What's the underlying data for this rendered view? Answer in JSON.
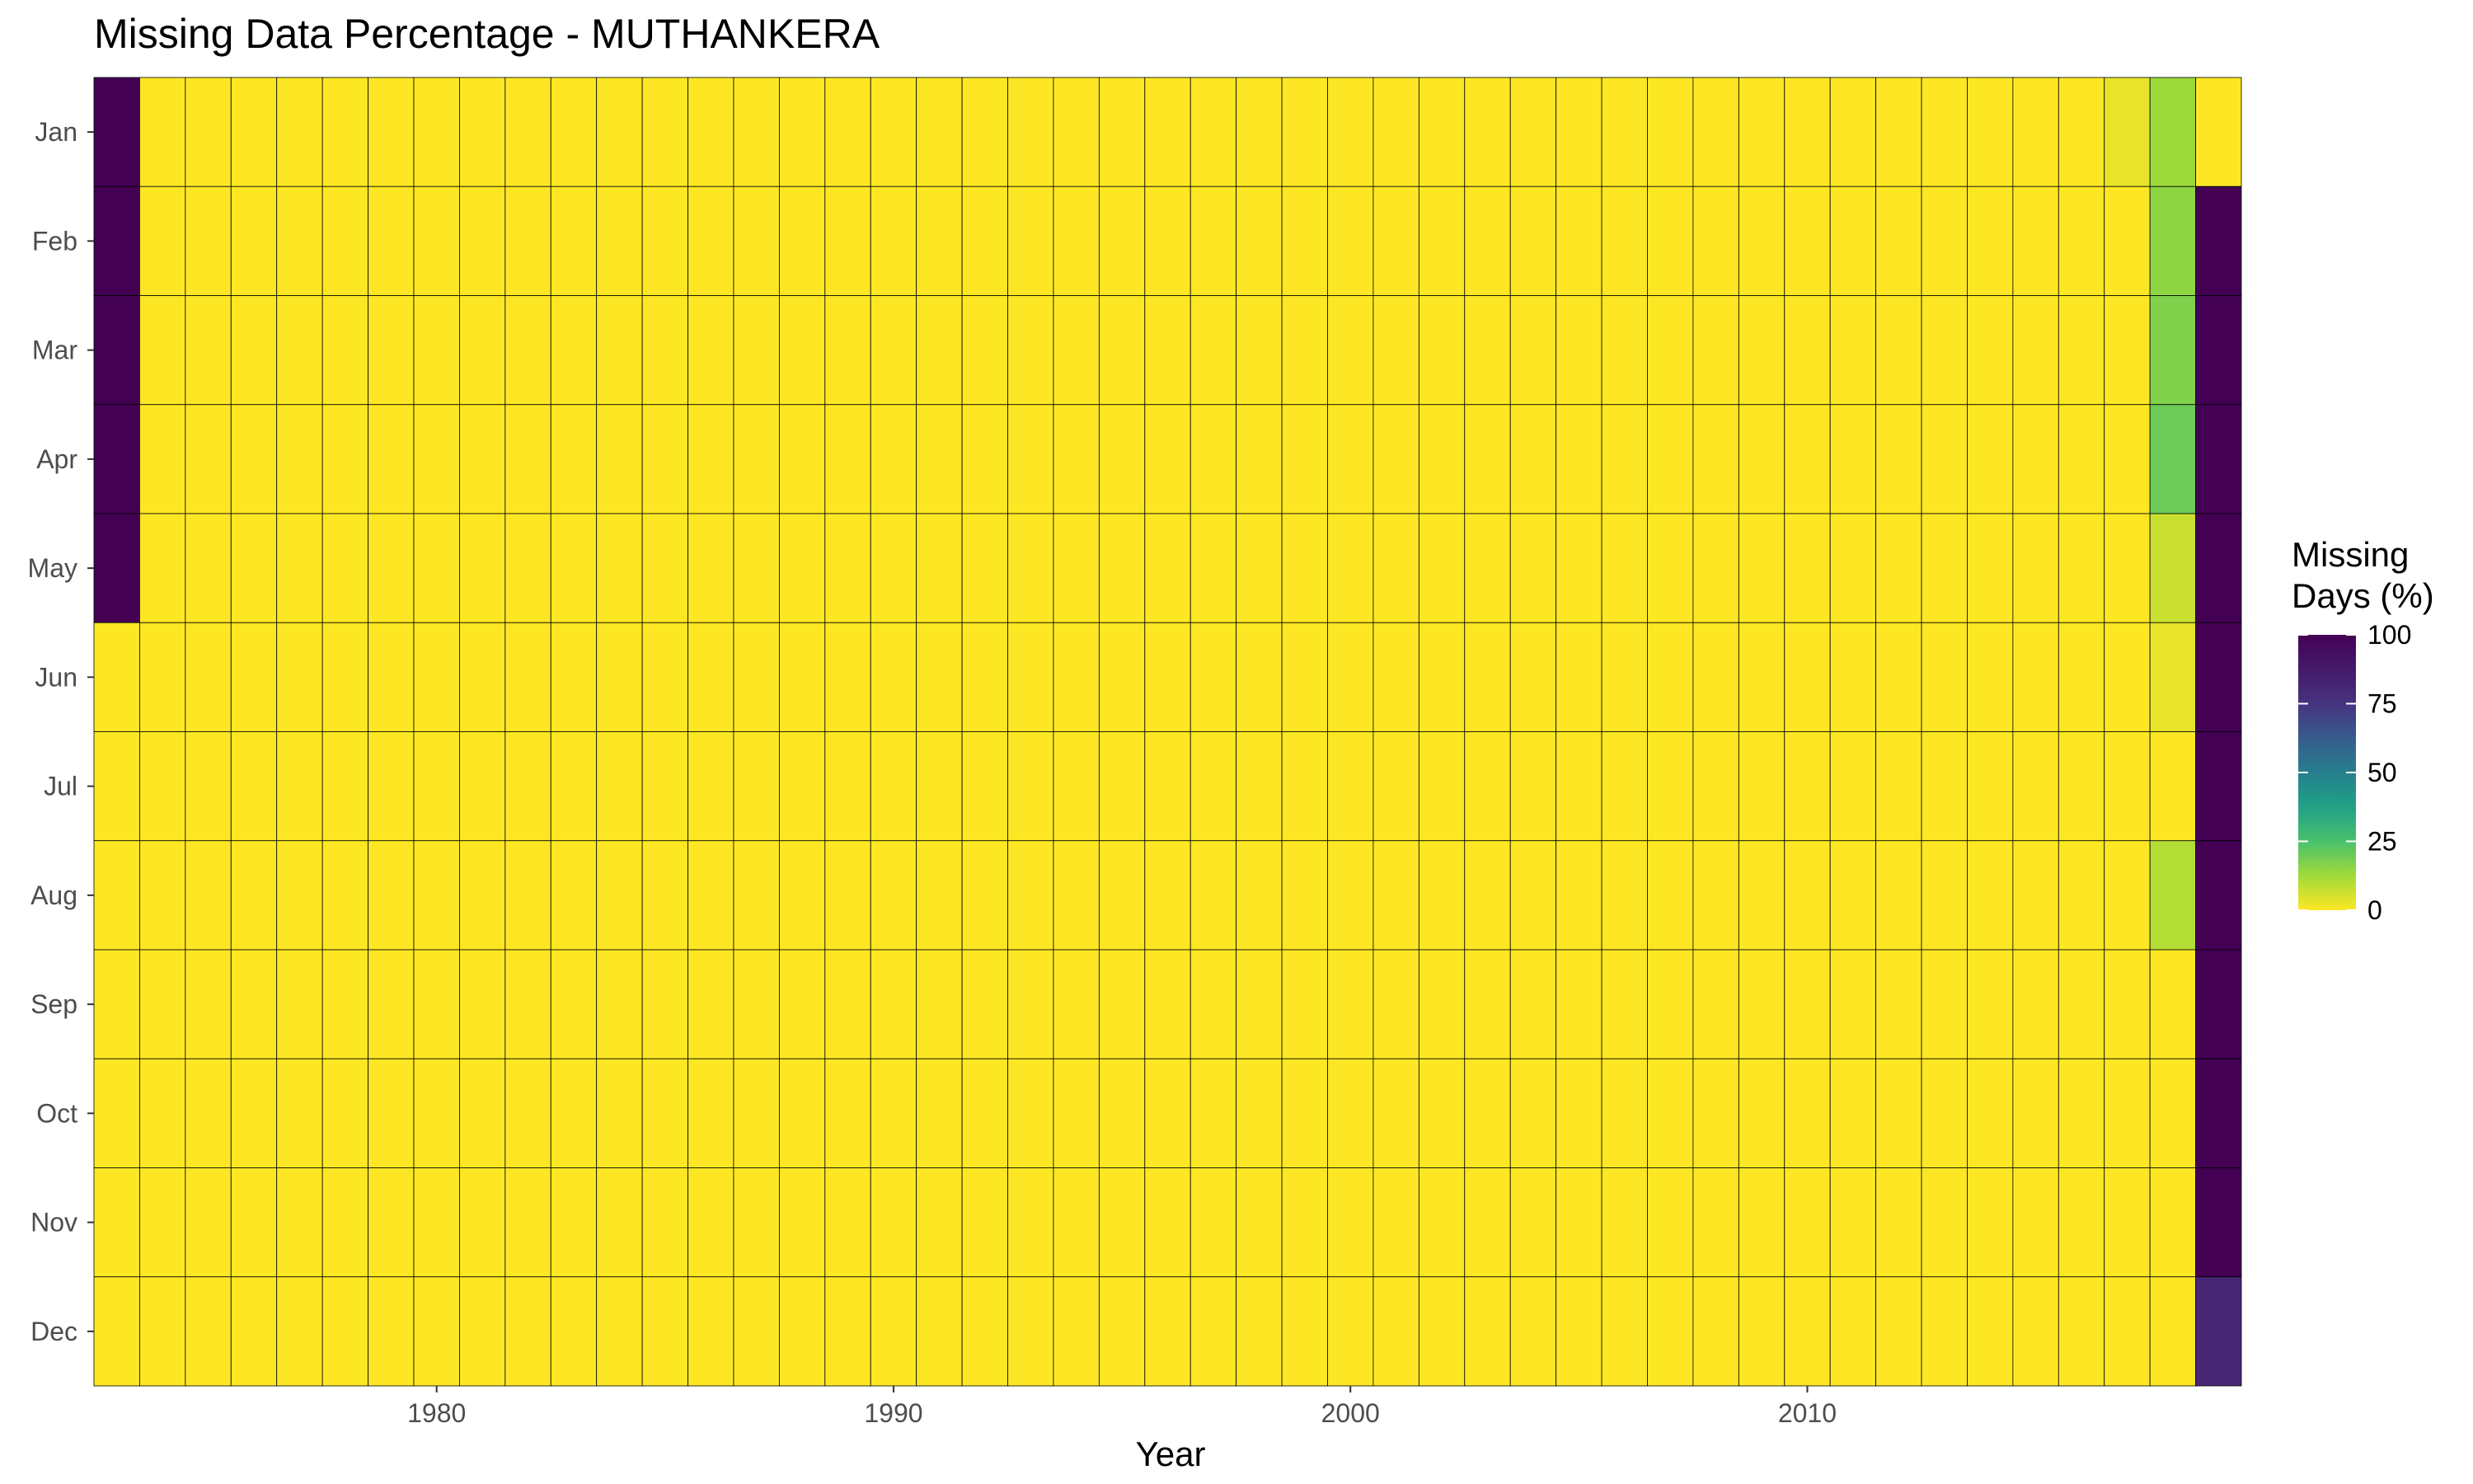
{
  "title": "Missing Data Percentage - MUTHANKERA",
  "chart_data": {
    "type": "heatmap",
    "title": "Missing Data Percentage - MUTHANKERA",
    "xlabel": "Year",
    "ylabel": "",
    "x_ticks": [
      1980,
      1990,
      2000,
      2010
    ],
    "years": [
      1973,
      1974,
      1975,
      1976,
      1977,
      1978,
      1979,
      1980,
      1981,
      1982,
      1983,
      1984,
      1985,
      1986,
      1987,
      1988,
      1989,
      1990,
      1991,
      1992,
      1993,
      1994,
      1995,
      1996,
      1997,
      1998,
      1999,
      2000,
      2001,
      2002,
      2003,
      2004,
      2005,
      2006,
      2007,
      2008,
      2009,
      2010,
      2011,
      2012,
      2013,
      2014,
      2015,
      2016,
      2017,
      2018,
      2019
    ],
    "months": [
      "Jan",
      "Feb",
      "Mar",
      "Apr",
      "May",
      "Jun",
      "Jul",
      "Aug",
      "Sep",
      "Oct",
      "Nov",
      "Dec"
    ],
    "default_value": 0,
    "nonzero_cells": [
      {
        "year": 1973,
        "month": "Jan",
        "value": 100
      },
      {
        "year": 1973,
        "month": "Feb",
        "value": 100
      },
      {
        "year": 1973,
        "month": "Mar",
        "value": 100
      },
      {
        "year": 1973,
        "month": "Apr",
        "value": 100
      },
      {
        "year": 1973,
        "month": "May",
        "value": 100
      },
      {
        "year": 2017,
        "month": "Jan",
        "value": 3
      },
      {
        "year": 2018,
        "month": "Jan",
        "value": 13
      },
      {
        "year": 2018,
        "month": "Feb",
        "value": 15
      },
      {
        "year": 2018,
        "month": "Mar",
        "value": 17
      },
      {
        "year": 2018,
        "month": "Apr",
        "value": 20
      },
      {
        "year": 2018,
        "month": "May",
        "value": 7
      },
      {
        "year": 2018,
        "month": "Jun",
        "value": 3
      },
      {
        "year": 2018,
        "month": "Aug",
        "value": 10
      },
      {
        "year": 2019,
        "month": "Feb",
        "value": 100
      },
      {
        "year": 2019,
        "month": "Mar",
        "value": 100
      },
      {
        "year": 2019,
        "month": "Apr",
        "value": 100
      },
      {
        "year": 2019,
        "month": "May",
        "value": 100
      },
      {
        "year": 2019,
        "month": "Jun",
        "value": 100
      },
      {
        "year": 2019,
        "month": "Jul",
        "value": 100
      },
      {
        "year": 2019,
        "month": "Aug",
        "value": 100
      },
      {
        "year": 2019,
        "month": "Sep",
        "value": 100
      },
      {
        "year": 2019,
        "month": "Oct",
        "value": 100
      },
      {
        "year": 2019,
        "month": "Nov",
        "value": 100
      },
      {
        "year": 2019,
        "month": "Dec",
        "value": 81
      }
    ],
    "legend": {
      "title_line1": "Missing",
      "title_line2": "Days (%)",
      "ticks": [
        100,
        75,
        50,
        25,
        0
      ],
      "range": [
        0,
        100
      ],
      "position": "right"
    },
    "colorscale": "viridis-reversed",
    "grid": false
  },
  "colors": {
    "cell_border": "#000000",
    "tick_text": "#4d4d4d",
    "zero": "#fde725",
    "full": "#440154"
  }
}
